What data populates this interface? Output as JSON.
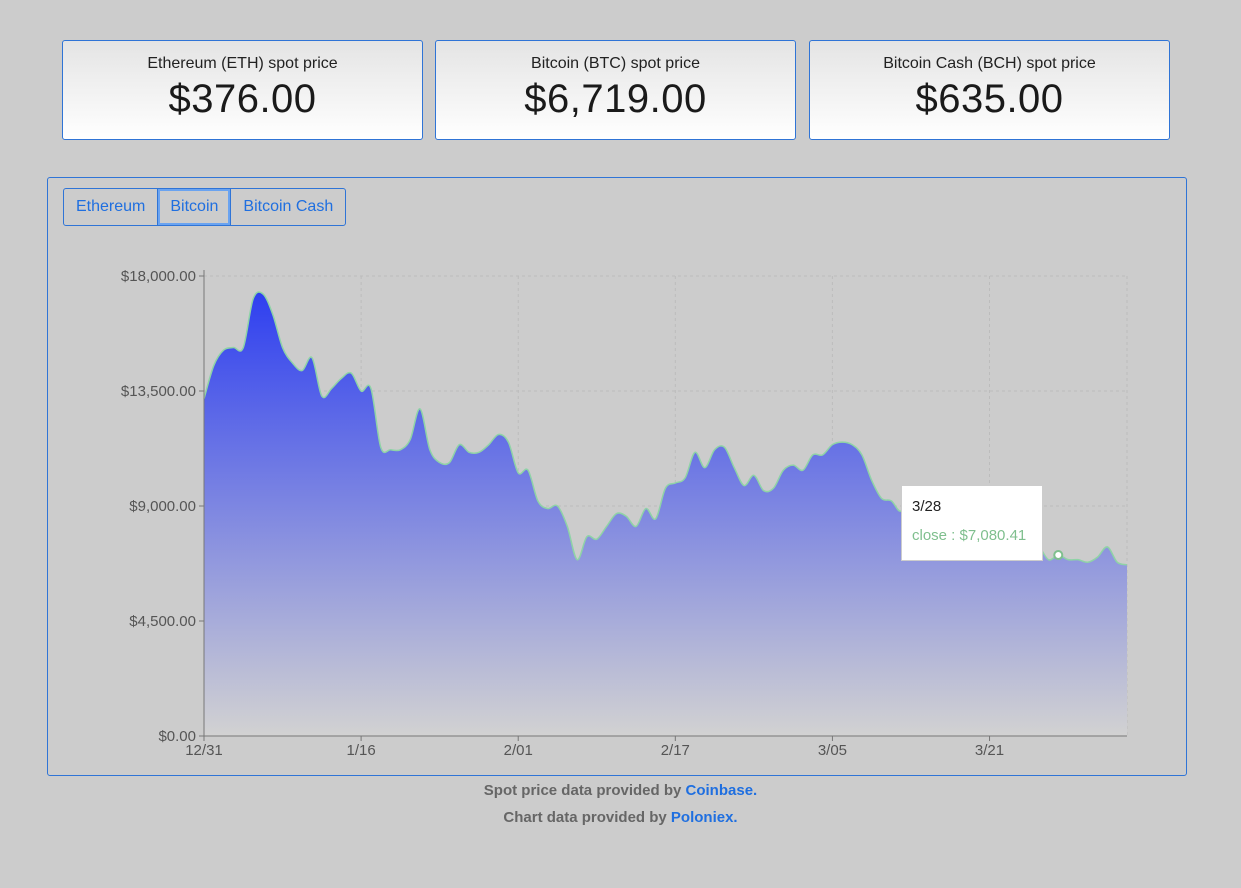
{
  "cards": [
    {
      "label": "Ethereum (ETH) spot price",
      "value": "$376.00"
    },
    {
      "label": "Bitcoin (BTC) spot price",
      "value": "$6,719.00"
    },
    {
      "label": "Bitcoin Cash (BCH) spot price",
      "value": "$635.00"
    }
  ],
  "tabs": [
    {
      "label": "Ethereum"
    },
    {
      "label": "Bitcoin",
      "active": true
    },
    {
      "label": "Bitcoin Cash"
    }
  ],
  "tooltip": {
    "date": "3/28",
    "text": "close : $7,080.41"
  },
  "footer": {
    "spot_prefix": "Spot price data provided by",
    "spot_link": "Coinbase.",
    "chart_prefix": "Chart data provided by",
    "chart_link": "Poloniex."
  },
  "colors": {
    "area_top": "#2e3ff0",
    "area_bottom": "#d2d2d2",
    "line": "#8fd3a6",
    "accent": "#1f6fe0"
  },
  "chart_data": {
    "type": "area",
    "series": [
      {
        "name": "close"
      }
    ],
    "x_ticks": [
      "12/31",
      "1/16",
      "2/01",
      "2/17",
      "3/05",
      "3/21"
    ],
    "y_ticks": [
      "$0.00",
      "$4,500.00",
      "$9,000.00",
      "$13,500.00",
      "$18,000.00"
    ],
    "ylim": [
      0,
      18000
    ],
    "x_day_range": [
      0,
      94
    ],
    "tick_days": [
      0,
      16,
      32,
      48,
      64,
      80
    ],
    "points": [
      [
        0,
        13200
      ],
      [
        1,
        14500
      ],
      [
        2,
        15100
      ],
      [
        3,
        15200
      ],
      [
        4,
        15200
      ],
      [
        5,
        17100
      ],
      [
        6,
        17300
      ],
      [
        7,
        16500
      ],
      [
        8,
        15200
      ],
      [
        9,
        14600
      ],
      [
        10,
        14300
      ],
      [
        11,
        14800
      ],
      [
        12,
        13300
      ],
      [
        13,
        13600
      ],
      [
        14,
        14000
      ],
      [
        15,
        14200
      ],
      [
        16,
        13500
      ],
      [
        17,
        13600
      ],
      [
        18,
        11300
      ],
      [
        19,
        11200
      ],
      [
        20,
        11200
      ],
      [
        21,
        11600
      ],
      [
        22,
        12800
      ],
      [
        23,
        11200
      ],
      [
        24,
        10700
      ],
      [
        25,
        10700
      ],
      [
        26,
        11400
      ],
      [
        27,
        11100
      ],
      [
        28,
        11100
      ],
      [
        29,
        11400
      ],
      [
        30,
        11800
      ],
      [
        31,
        11500
      ],
      [
        32,
        10300
      ],
      [
        33,
        10400
      ],
      [
        34,
        9200
      ],
      [
        35,
        8900
      ],
      [
        36,
        9000
      ],
      [
        37,
        8200
      ],
      [
        38,
        6900
      ],
      [
        39,
        7800
      ],
      [
        40,
        7700
      ],
      [
        41,
        8200
      ],
      [
        42,
        8700
      ],
      [
        43,
        8600
      ],
      [
        44,
        8200
      ],
      [
        45,
        8900
      ],
      [
        46,
        8500
      ],
      [
        47,
        9700
      ],
      [
        48,
        9900
      ],
      [
        49,
        10100
      ],
      [
        50,
        11100
      ],
      [
        51,
        10500
      ],
      [
        52,
        11200
      ],
      [
        53,
        11300
      ],
      [
        54,
        10500
      ],
      [
        55,
        9800
      ],
      [
        56,
        10200
      ],
      [
        57,
        9600
      ],
      [
        58,
        9700
      ],
      [
        59,
        10400
      ],
      [
        60,
        10600
      ],
      [
        61,
        10400
      ],
      [
        62,
        11000
      ],
      [
        63,
        11000
      ],
      [
        64,
        11400
      ],
      [
        65,
        11500
      ],
      [
        66,
        11400
      ],
      [
        67,
        11000
      ],
      [
        68,
        10000
      ],
      [
        69,
        9300
      ],
      [
        70,
        9200
      ],
      [
        71,
        8800
      ],
      [
        72,
        9600
      ],
      [
        73,
        9200
      ],
      [
        74,
        9100
      ],
      [
        75,
        8900
      ],
      [
        76,
        8800
      ],
      [
        77,
        8600
      ],
      [
        78,
        8300
      ],
      [
        79,
        8000
      ],
      [
        80,
        8100
      ],
      [
        81,
        7900
      ],
      [
        82,
        7800
      ],
      [
        83,
        7900
      ],
      [
        84,
        8200
      ],
      [
        85,
        7500
      ],
      [
        86,
        6900
      ],
      [
        87,
        7080
      ],
      [
        88,
        6900
      ],
      [
        89,
        6900
      ],
      [
        90,
        6800
      ],
      [
        91,
        7000
      ],
      [
        92,
        7400
      ],
      [
        93,
        6800
      ],
      [
        94,
        6700
      ]
    ],
    "highlight": {
      "x": 87,
      "y": 7080.41
    }
  }
}
